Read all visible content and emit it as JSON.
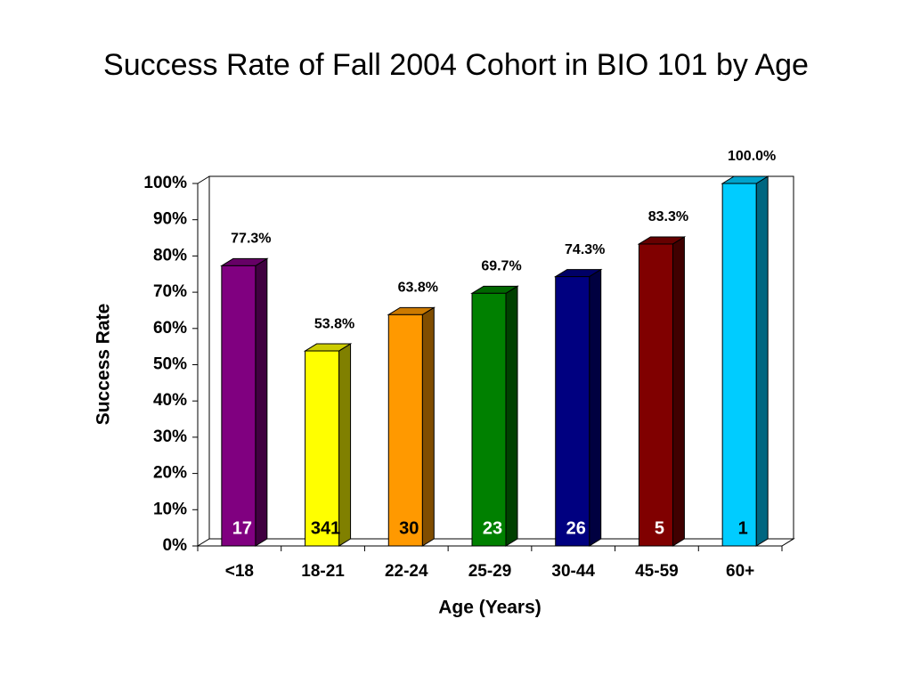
{
  "chart_data": {
    "type": "bar3d",
    "title": "Success Rate of Fall 2004 Cohort in BIO 101 by Age",
    "y_label": "Success Rate",
    "x_label": "Age (Years)",
    "categories": [
      "<18",
      "18-21",
      "22-24",
      "25-29",
      "30-44",
      "45-59",
      "60+"
    ],
    "values": [
      77.3,
      53.8,
      63.8,
      69.7,
      74.3,
      83.3,
      100
    ],
    "value_labels": [
      "77.3%",
      "53.8%",
      "63.8%",
      "69.7%",
      "74.3%",
      "83.3%",
      "100.0%"
    ],
    "colors": [
      "#800080",
      "#ffff00",
      "#ff9900",
      "#008000",
      "#000080",
      "#800000",
      "#00ccff"
    ],
    "counts": [
      17,
      341,
      30,
      23,
      26,
      5,
      1
    ],
    "count_colors": [
      "#ffffff",
      "#000000",
      "#000000",
      "#ffffff",
      "#ffffff",
      "#ffffff",
      "#000000"
    ],
    "ylim": [
      0,
      100
    ],
    "yticks": [
      {
        "value": 0,
        "label": "0%"
      },
      {
        "value": 10,
        "label": "10%"
      },
      {
        "value": 20,
        "label": "20%"
      },
      {
        "value": 30,
        "label": "30%"
      },
      {
        "value": 40,
        "label": "40%"
      },
      {
        "value": 50,
        "label": "50%"
      },
      {
        "value": 60,
        "label": "60%"
      },
      {
        "value": 70,
        "label": "70%"
      },
      {
        "value": 80,
        "label": "80%"
      },
      {
        "value": 90,
        "label": "90%"
      },
      {
        "value": 100,
        "label": "100%"
      }
    ]
  }
}
